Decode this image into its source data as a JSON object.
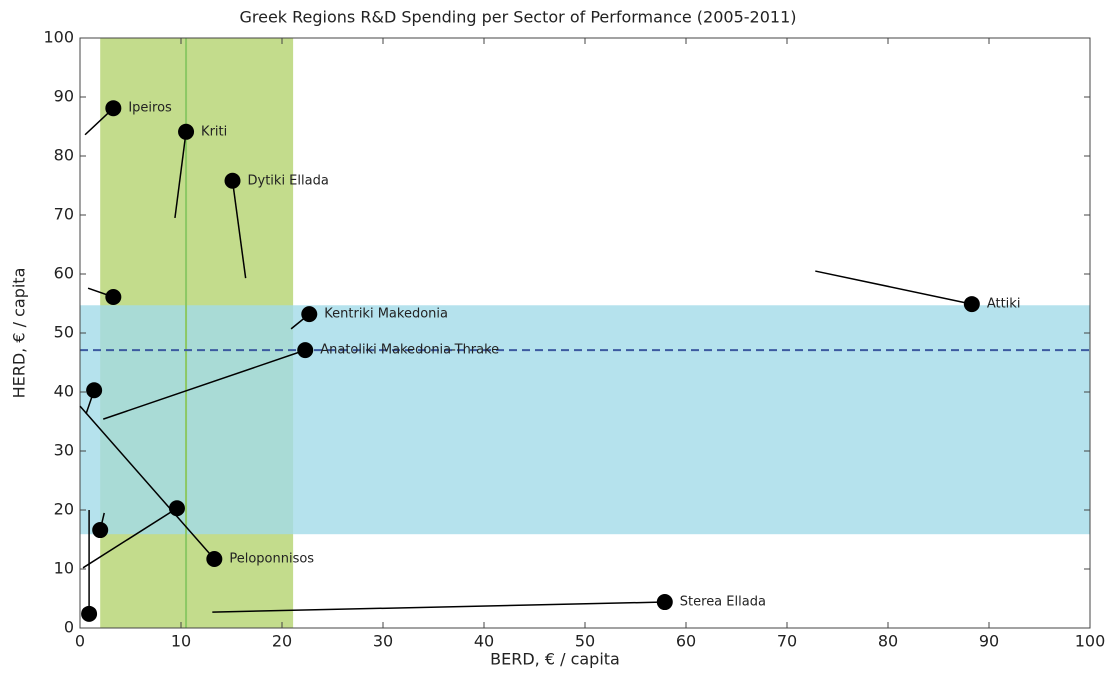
{
  "chart_data": {
    "type": "scatter",
    "title": "Greek Regions R&D Spending per Sector of Performance (2005-2011)",
    "xlabel": "BERD, € / capita",
    "ylabel": "HERD, € / capita",
    "xlim": [
      0,
      100
    ],
    "ylim": [
      0,
      100
    ],
    "xticks": [
      0,
      10,
      20,
      30,
      40,
      50,
      60,
      70,
      80,
      90,
      100
    ],
    "yticks": [
      0,
      10,
      20,
      30,
      40,
      50,
      60,
      70,
      80,
      90,
      100
    ],
    "grid": false,
    "x_band": [
      2.0,
      21.1
    ],
    "x_band_color": "#c3dc8c",
    "x_band_line": 10.5,
    "x_band_line_color": "#8cc864",
    "y_band": [
      15.9,
      54.7
    ],
    "y_band_color": "#a3dbe8",
    "y_dashed": 47.1,
    "y_dashed_color": "#3c5aa0",
    "point_color": "#000000",
    "points": [
      {
        "label": "Ipeiros",
        "x": 3.3,
        "y": 88.1,
        "from_x": 0.5,
        "from_y": 83.6
      },
      {
        "label": "Kriti",
        "x": 10.5,
        "y": 84.1,
        "from_x": 9.4,
        "from_y": 69.5
      },
      {
        "label": "Dytiki Ellada",
        "x": 15.1,
        "y": 75.8,
        "from_x": 16.4,
        "from_y": 59.3
      },
      {
        "label": null,
        "x": 3.3,
        "y": 56.1,
        "from_x": 0.8,
        "from_y": 57.6
      },
      {
        "label": "Kentriki Makedonia",
        "x": 22.7,
        "y": 53.2,
        "from_x": 20.9,
        "from_y": 50.7
      },
      {
        "label": "Anatoliki Makedonia-Thrake",
        "x": 22.3,
        "y": 47.1,
        "from_x": 2.3,
        "from_y": 35.4
      },
      {
        "label": "Attiki",
        "x": 88.3,
        "y": 54.9,
        "from_x": 72.8,
        "from_y": 60.5
      },
      {
        "label": null,
        "x": 1.4,
        "y": 40.3,
        "from_x": 0.6,
        "from_y": 36.3
      },
      {
        "label": null,
        "x": 9.6,
        "y": 20.3,
        "from_x": 0.3,
        "from_y": 10.2
      },
      {
        "label": null,
        "x": 2.0,
        "y": 16.6,
        "from_x": 2.4,
        "from_y": 19.5
      },
      {
        "label": "Peloponnisos",
        "x": 13.3,
        "y": 11.7,
        "from_x": 0.0,
        "from_y": 37.6
      },
      {
        "label": null,
        "x": 0.9,
        "y": 2.4,
        "from_x": 0.9,
        "from_y": 20.0
      },
      {
        "label": "Sterea Ellada",
        "x": 57.9,
        "y": 4.4,
        "from_x": 13.1,
        "from_y": 2.7
      }
    ]
  }
}
